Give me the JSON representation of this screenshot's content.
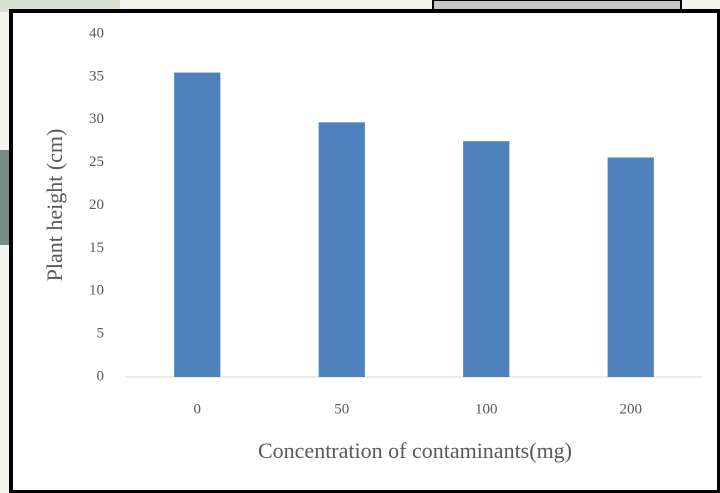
{
  "chart_data": {
    "type": "bar",
    "categories": [
      "0",
      "50",
      "100",
      "200"
    ],
    "values": [
      35.5,
      29.7,
      27.5,
      25.6
    ],
    "color": "#4f81bd",
    "x_label": "Concentration of contaminants(mg)",
    "y_label": "Plant height (cm)",
    "ylim": [
      0,
      40
    ],
    "yticks": [
      0,
      5,
      10,
      15,
      20,
      25,
      30,
      35,
      40
    ],
    "grid": false
  }
}
